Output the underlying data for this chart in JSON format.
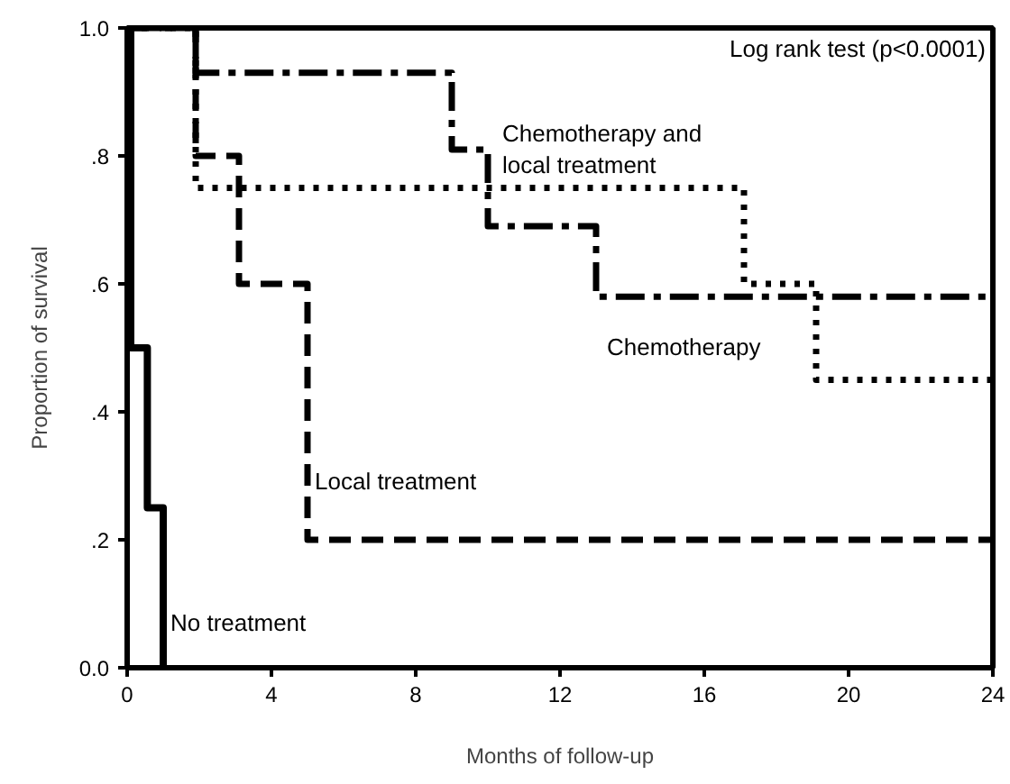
{
  "chart_data": {
    "type": "step",
    "xlabel": "Months of follow-up",
    "ylabel": "Proportion of survival",
    "xlim": [
      0,
      24
    ],
    "xticks": [
      0,
      4,
      8,
      12,
      16,
      20,
      24
    ],
    "ylim": [
      0,
      1
    ],
    "yticks": [
      {
        "value": 0,
        "label": "0.0"
      },
      {
        "value": 0.2,
        "label": ".2"
      },
      {
        "value": 0.4,
        "label": ".4"
      },
      {
        "value": 0.6,
        "label": ".6"
      },
      {
        "value": 0.8,
        "label": ".8"
      },
      {
        "value": 1,
        "label": "1.0"
      }
    ],
    "grid": false,
    "marker": "none",
    "annotations": [
      "Log rank test (p<0.0001)"
    ],
    "series": [
      {
        "name": "Chemotherapy and local treatment",
        "color": "#000000",
        "line_style": "dotted",
        "x": [
          0,
          1.9,
          17.1,
          19.1,
          24
        ],
        "values": [
          1,
          0.75,
          0.6,
          0.45,
          0.45
        ]
      },
      {
        "name": "Chemotherapy",
        "color": "#000000",
        "line_style": "dashdot",
        "x": [
          0,
          1.9,
          9,
          10,
          13,
          24
        ],
        "values": [
          1,
          0.93,
          0.81,
          0.69,
          0.58,
          0.58
        ]
      },
      {
        "name": "Local treatment",
        "color": "#000000",
        "line_style": "dashed",
        "x": [
          0,
          1.9,
          3.1,
          5,
          24
        ],
        "values": [
          1,
          0.8,
          0.6,
          0.2,
          0.2
        ]
      },
      {
        "name": "No treatment",
        "color": "#000000",
        "line_style": "solid",
        "x": [
          0,
          0.1,
          0.56,
          1
        ],
        "values": [
          1,
          0.5,
          0.25,
          0
        ]
      }
    ]
  }
}
